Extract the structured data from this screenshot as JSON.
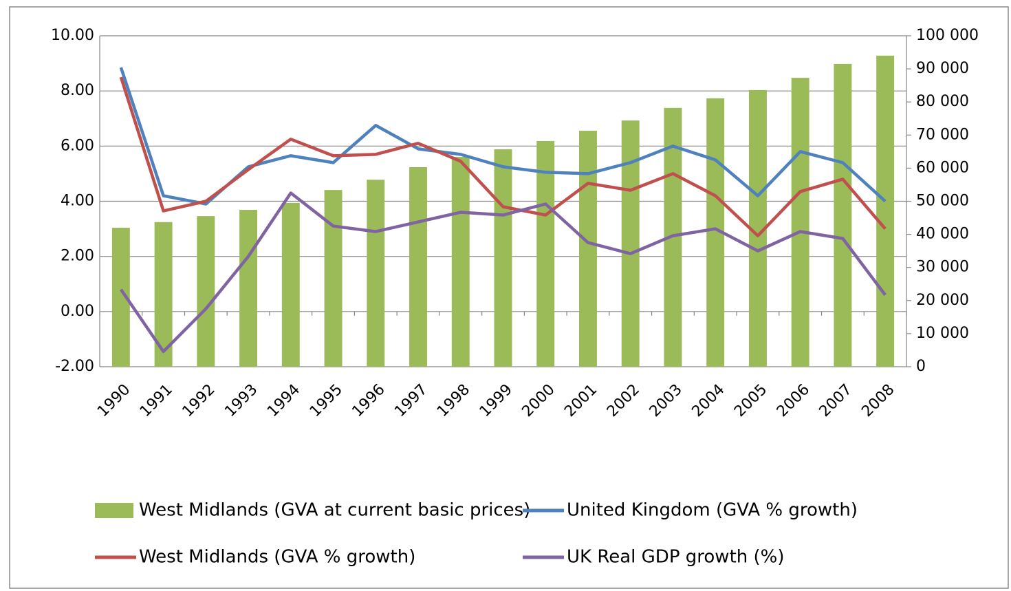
{
  "chart_data": {
    "type": "combo",
    "categories": [
      "1990",
      "1991",
      "1992",
      "1993",
      "1994",
      "1995",
      "1996",
      "1997",
      "1998",
      "1999",
      "2000",
      "2001",
      "2002",
      "2003",
      "2004",
      "2005",
      "2006",
      "2007",
      "2008"
    ],
    "series": [
      {
        "name": "West Midlands (GVA at current basic prices)",
        "type": "bar",
        "axis": "y2",
        "color": "#9bbb59",
        "values": [
          42000,
          43700,
          45500,
          47400,
          49500,
          53400,
          56500,
          60300,
          63400,
          65700,
          68200,
          71300,
          74400,
          78200,
          81100,
          83600,
          87300,
          91500,
          94000
        ]
      },
      {
        "name": "United Kingdom (GVA % growth)",
        "type": "line",
        "color": "#4f81bd",
        "values": [
          8.85,
          4.2,
          3.9,
          5.25,
          5.65,
          5.4,
          6.75,
          5.9,
          5.7,
          5.25,
          5.05,
          5.0,
          5.4,
          6.0,
          5.5,
          4.2,
          5.8,
          5.4,
          4.0
        ]
      },
      {
        "name": "West Midlands (GVA % growth)",
        "type": "line",
        "color": "#c0504d",
        "values": [
          8.5,
          3.65,
          4.0,
          5.15,
          6.25,
          5.65,
          5.7,
          6.1,
          5.45,
          3.8,
          3.5,
          4.65,
          4.4,
          5.0,
          4.2,
          2.75,
          4.35,
          4.8,
          3.0
        ]
      },
      {
        "name": "UK Real GDP growth (%)",
        "type": "line",
        "color": "#8064a2",
        "values": [
          0.8,
          -1.45,
          0.1,
          2.0,
          4.3,
          3.1,
          2.9,
          3.25,
          3.6,
          3.5,
          3.9,
          2.5,
          2.1,
          2.75,
          3.0,
          2.2,
          2.9,
          2.65,
          0.6
        ]
      }
    ],
    "ylim": [
      -2,
      10
    ],
    "yticks": [
      {
        "value": -2,
        "label": "-2.00"
      },
      {
        "value": 0,
        "label": "0.00"
      },
      {
        "value": 2,
        "label": "2.00"
      },
      {
        "value": 4,
        "label": "4.00"
      },
      {
        "value": 6,
        "label": "6.00"
      },
      {
        "value": 8,
        "label": "8.00"
      },
      {
        "value": 10,
        "label": "10.00"
      }
    ],
    "y2lim": [
      0,
      100000
    ],
    "y2ticks": [
      0,
      {
        "value": 10000,
        "label": "10 000"
      },
      {
        "value": 20000,
        "label": "20 000"
      },
      {
        "value": 30000,
        "label": "30 000"
      },
      {
        "value": 40000,
        "label": "40 000"
      },
      {
        "value": 50000,
        "label": "50 000"
      },
      {
        "value": 60000,
        "label": "60 000"
      },
      {
        "value": 70000,
        "label": "70 000"
      },
      {
        "value": 80000,
        "label": "80 000"
      },
      {
        "value": 90000,
        "label": "90 000"
      },
      {
        "value": 100000,
        "label": "100 000"
      }
    ],
    "grid": true
  }
}
